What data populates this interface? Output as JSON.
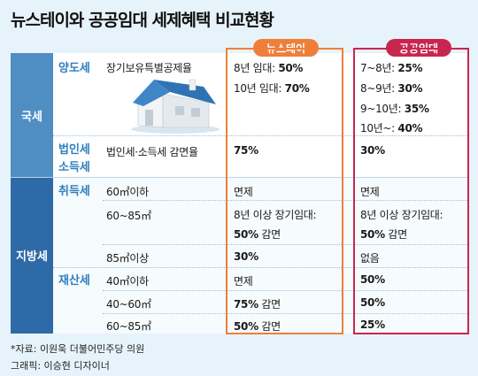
{
  "title": "뉴스테이와 공공임대 세제혜택 비교현황",
  "headers": {
    "newstay": "뉴스테이",
    "public": "공공임대"
  },
  "national": {
    "label": "국세",
    "transfer_tax": {
      "label": "양도세",
      "item": "장기보유특별공제율",
      "newstay": [
        "8년 임대: ",
        "50%",
        "10년 임대: ",
        "70%"
      ],
      "public": [
        "7~8년: ",
        "25%",
        "8~9년: ",
        "30%",
        "9~10년: ",
        "35%",
        "10년~: ",
        "40%"
      ]
    },
    "corporate_tax": {
      "label_line1": "법인세",
      "label_line2": "소득세",
      "item": "법인세·소득세 감면율",
      "newstay": "75%",
      "public": "30%"
    }
  },
  "local": {
    "label": "지방세",
    "acquisition_tax": {
      "label": "취득세",
      "rows": [
        {
          "item": "60㎡이하",
          "newstay": "면제",
          "public": "면제"
        },
        {
          "item": "60~85㎡",
          "newstay_line1": "8년 이상 장기임대:",
          "newstay_bold": "50%",
          "newstay_rest": " 감면",
          "public_line1": "8년 이상 장기임대:",
          "public_bold": "50%",
          "public_rest": " 감면"
        },
        {
          "item": "85㎡이상",
          "newstay": "30%",
          "public": "없음"
        }
      ]
    },
    "property_tax": {
      "label": "재산세",
      "rows": [
        {
          "item": "40㎡이하",
          "newstay": "면제",
          "public": "50%"
        },
        {
          "item": "40~60㎡",
          "newstay_bold": "75%",
          "newstay_rest": " 감면",
          "public": "50%"
        },
        {
          "item": "60~85㎡",
          "newstay_bold": "50%",
          "newstay_rest": " 감면",
          "public": "25%"
        }
      ]
    }
  },
  "footer": {
    "source": "*자료: 이원욱 더불어민주당 의원",
    "credit": "그래픽: 이승현 디자이너"
  },
  "colors": {
    "newstay": "#ee7f3a",
    "public": "#c9264f",
    "national": "#4e8ec3",
    "local": "#2e6aa8"
  },
  "illustration": "house-icon"
}
